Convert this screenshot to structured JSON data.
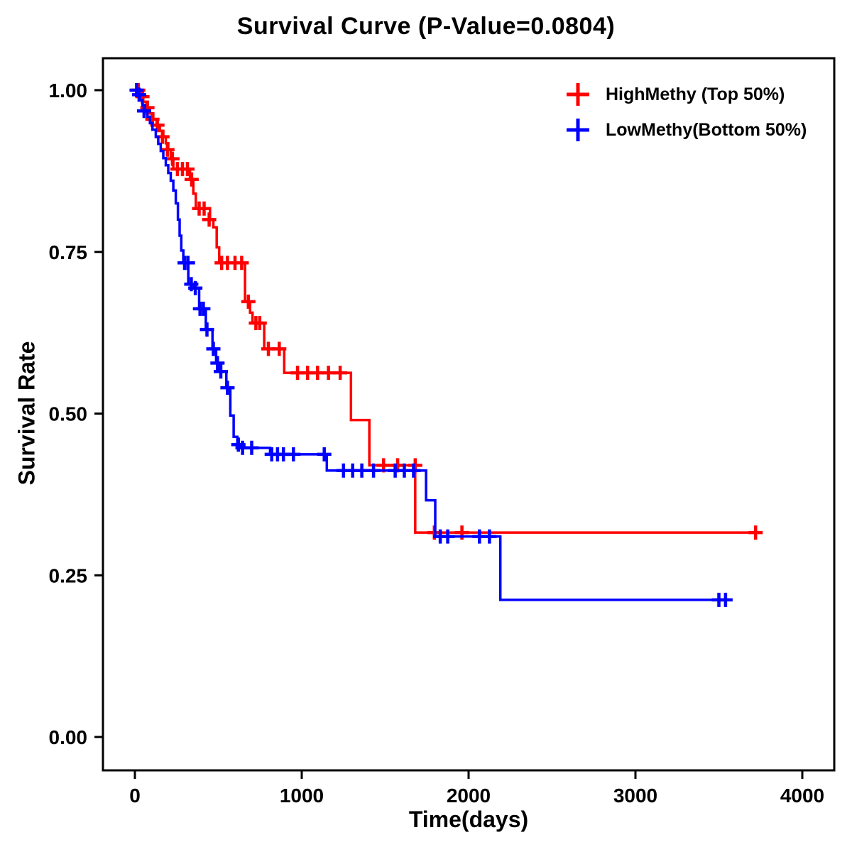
{
  "chart_data": {
    "type": "line",
    "subtype": "kaplan_meier_step_survival",
    "title": "Survival Curve (P-Value=0.0804)",
    "xlabel": "Time(days)",
    "ylabel": "Survival Rate",
    "xlim": [
      0,
      4000
    ],
    "ylim": [
      0,
      1
    ],
    "grid": false,
    "legend_position": "top-right",
    "axis_color": "#000000",
    "xticks": [
      {
        "v": 0,
        "label": "0"
      },
      {
        "v": 1000,
        "label": "1000"
      },
      {
        "v": 2000,
        "label": "2000"
      },
      {
        "v": 3000,
        "label": "3000"
      },
      {
        "v": 4000,
        "label": "4000"
      }
    ],
    "yticks": [
      {
        "v": 0,
        "label": "0.00"
      },
      {
        "v": 0.25,
        "label": "0.25"
      },
      {
        "v": 0.5,
        "label": "0.50"
      },
      {
        "v": 0.75,
        "label": "0.75"
      },
      {
        "v": 1,
        "label": "1.00"
      }
    ],
    "series": [
      {
        "name": "HighMethy (Top 50%)",
        "color": "#FF0000",
        "steps": [
          [
            0,
            1.0
          ],
          [
            25,
            0.99
          ],
          [
            50,
            0.982
          ],
          [
            70,
            0.973
          ],
          [
            90,
            0.964
          ],
          [
            110,
            0.955
          ],
          [
            130,
            0.946
          ],
          [
            150,
            0.937
          ],
          [
            170,
            0.928
          ],
          [
            185,
            0.918
          ],
          [
            200,
            0.908
          ],
          [
            215,
            0.894
          ],
          [
            230,
            0.878
          ],
          [
            330,
            0.862
          ],
          [
            350,
            0.84
          ],
          [
            365,
            0.817
          ],
          [
            450,
            0.8
          ],
          [
            470,
            0.788
          ],
          [
            490,
            0.757
          ],
          [
            505,
            0.733
          ],
          [
            660,
            0.673
          ],
          [
            690,
            0.656
          ],
          [
            705,
            0.64
          ],
          [
            775,
            0.6
          ],
          [
            895,
            0.563
          ],
          [
            1295,
            0.49
          ],
          [
            1405,
            0.42
          ],
          [
            1680,
            0.316
          ],
          [
            3720,
            0.316
          ]
        ],
        "censors": [
          [
            20,
            1.0
          ],
          [
            45,
            0.99
          ],
          [
            75,
            0.973
          ],
          [
            105,
            0.955
          ],
          [
            135,
            0.946
          ],
          [
            165,
            0.928
          ],
          [
            195,
            0.908
          ],
          [
            225,
            0.894
          ],
          [
            255,
            0.878
          ],
          [
            285,
            0.878
          ],
          [
            315,
            0.878
          ],
          [
            340,
            0.862
          ],
          [
            385,
            0.817
          ],
          [
            415,
            0.817
          ],
          [
            445,
            0.8
          ],
          [
            520,
            0.733
          ],
          [
            555,
            0.733
          ],
          [
            600,
            0.733
          ],
          [
            640,
            0.733
          ],
          [
            680,
            0.673
          ],
          [
            725,
            0.64
          ],
          [
            748,
            0.64
          ],
          [
            800,
            0.6
          ],
          [
            865,
            0.6
          ],
          [
            975,
            0.563
          ],
          [
            1035,
            0.563
          ],
          [
            1095,
            0.563
          ],
          [
            1160,
            0.563
          ],
          [
            1230,
            0.563
          ],
          [
            1490,
            0.42
          ],
          [
            1575,
            0.42
          ],
          [
            1680,
            0.42
          ],
          [
            1795,
            0.316
          ],
          [
            1960,
            0.316
          ],
          [
            3720,
            0.316
          ]
        ]
      },
      {
        "name": "LowMethy(Bottom 50%)",
        "color": "#0000FF",
        "steps": [
          [
            0,
            1.0
          ],
          [
            15,
            0.993
          ],
          [
            30,
            0.985
          ],
          [
            45,
            0.977
          ],
          [
            60,
            0.968
          ],
          [
            75,
            0.959
          ],
          [
            90,
            0.949
          ],
          [
            105,
            0.939
          ],
          [
            125,
            0.928
          ],
          [
            140,
            0.917
          ],
          [
            155,
            0.906
          ],
          [
            170,
            0.895
          ],
          [
            185,
            0.884
          ],
          [
            200,
            0.872
          ],
          [
            215,
            0.86
          ],
          [
            230,
            0.845
          ],
          [
            245,
            0.825
          ],
          [
            258,
            0.8
          ],
          [
            268,
            0.775
          ],
          [
            278,
            0.752
          ],
          [
            290,
            0.733
          ],
          [
            320,
            0.7
          ],
          [
            355,
            0.694
          ],
          [
            385,
            0.662
          ],
          [
            425,
            0.63
          ],
          [
            465,
            0.6
          ],
          [
            487,
            0.578
          ],
          [
            508,
            0.565
          ],
          [
            548,
            0.54
          ],
          [
            572,
            0.497
          ],
          [
            592,
            0.464
          ],
          [
            614,
            0.452
          ],
          [
            655,
            0.447
          ],
          [
            810,
            0.437
          ],
          [
            1150,
            0.412
          ],
          [
            1745,
            0.366
          ],
          [
            1800,
            0.31
          ],
          [
            2190,
            0.212
          ],
          [
            3545,
            0.212
          ]
        ],
        "censors": [
          [
            10,
            1.0
          ],
          [
            25,
            0.993
          ],
          [
            55,
            0.968
          ],
          [
            298,
            0.733
          ],
          [
            318,
            0.733
          ],
          [
            338,
            0.7
          ],
          [
            362,
            0.694
          ],
          [
            390,
            0.662
          ],
          [
            410,
            0.662
          ],
          [
            432,
            0.63
          ],
          [
            470,
            0.6
          ],
          [
            495,
            0.578
          ],
          [
            515,
            0.565
          ],
          [
            555,
            0.54
          ],
          [
            620,
            0.452
          ],
          [
            645,
            0.447
          ],
          [
            700,
            0.447
          ],
          [
            820,
            0.437
          ],
          [
            855,
            0.437
          ],
          [
            890,
            0.437
          ],
          [
            950,
            0.437
          ],
          [
            1135,
            0.437
          ],
          [
            1250,
            0.412
          ],
          [
            1305,
            0.412
          ],
          [
            1360,
            0.412
          ],
          [
            1430,
            0.412
          ],
          [
            1560,
            0.412
          ],
          [
            1615,
            0.412
          ],
          [
            1670,
            0.412
          ],
          [
            1830,
            0.31
          ],
          [
            1875,
            0.31
          ],
          [
            2065,
            0.31
          ],
          [
            2125,
            0.31
          ],
          [
            3500,
            0.212
          ],
          [
            3540,
            0.212
          ]
        ]
      }
    ]
  }
}
